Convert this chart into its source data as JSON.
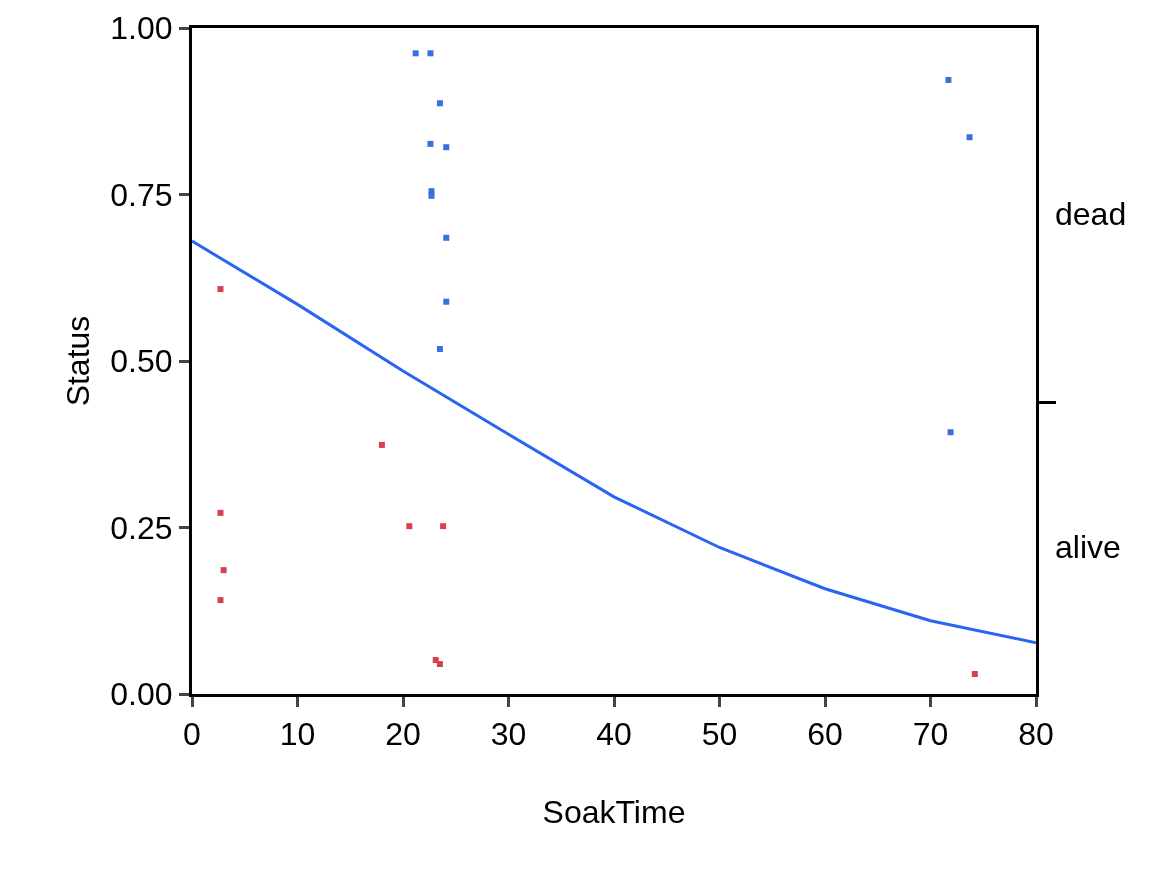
{
  "chart_data": {
    "type": "scatter",
    "xlabel": "SoakTime",
    "ylabel": "Status",
    "xlim": [
      0,
      80
    ],
    "xticks": [
      0,
      10,
      20,
      30,
      40,
      50,
      60,
      70,
      80
    ],
    "ylim": [
      0,
      1
    ],
    "yticks": [
      {
        "value": 0,
        "label": "0.00"
      },
      {
        "value": 0.25,
        "label": "0.25"
      },
      {
        "value": 0.5,
        "label": "0.50"
      },
      {
        "value": 0.75,
        "label": "0.75"
      },
      {
        "value": 1,
        "label": "1.00"
      }
    ],
    "annotations": [
      "dead",
      "alive"
    ],
    "grid": false,
    "marker": "square",
    "series": [
      {
        "color": "#3a6fdc",
        "x": [
          21.2,
          22.6,
          23.5,
          22.6,
          24.1,
          22.7,
          22.7,
          24.1,
          24.1,
          23.5,
          71.7,
          73.7,
          71.9
        ],
        "values": [
          0.962,
          0.962,
          0.887,
          0.826,
          0.821,
          0.755,
          0.748,
          0.685,
          0.589,
          0.518,
          0.922,
          0.836,
          0.393
        ]
      },
      {
        "color": "#d8404f",
        "x": [
          2.7,
          18.0,
          2.7,
          3.0,
          2.7,
          20.6,
          23.8,
          23.1,
          23.5,
          74.2
        ],
        "values": [
          0.608,
          0.374,
          0.272,
          0.186,
          0.141,
          0.252,
          0.252,
          0.051,
          0.045,
          0.03
        ]
      },
      {
        "type": "line",
        "marker": "none",
        "line_style": "solid",
        "color": "#2a64f4",
        "x": [
          0,
          10,
          20,
          30,
          40,
          50,
          60,
          70,
          80
        ],
        "values": [
          0.68,
          0.585,
          0.485,
          0.39,
          0.296,
          0.22,
          0.158,
          0.11,
          0.077
        ]
      }
    ]
  }
}
